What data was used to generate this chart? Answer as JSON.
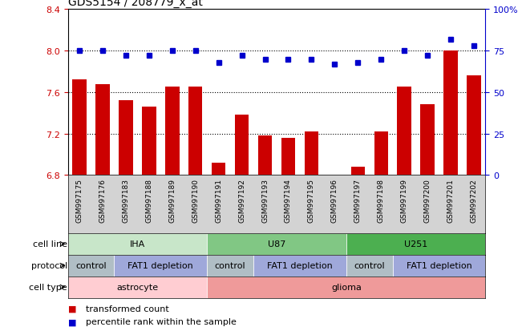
{
  "title": "GDS5154 / 208779_x_at",
  "samples": [
    "GSM997175",
    "GSM997176",
    "GSM997183",
    "GSM997188",
    "GSM997189",
    "GSM997190",
    "GSM997191",
    "GSM997192",
    "GSM997193",
    "GSM997194",
    "GSM997195",
    "GSM997196",
    "GSM997197",
    "GSM997198",
    "GSM997199",
    "GSM997200",
    "GSM997201",
    "GSM997202"
  ],
  "bar_values": [
    7.72,
    7.68,
    7.52,
    7.46,
    7.65,
    7.65,
    6.92,
    7.38,
    7.18,
    7.16,
    7.22,
    6.8,
    6.88,
    7.22,
    7.65,
    7.48,
    8.0,
    7.76
  ],
  "dot_values": [
    75,
    75,
    72,
    72,
    75,
    75,
    68,
    72,
    70,
    70,
    70,
    67,
    68,
    70,
    75,
    72,
    82,
    78
  ],
  "ylim_left": [
    6.8,
    8.4
  ],
  "ylim_right": [
    0,
    100
  ],
  "yticks_left": [
    6.8,
    7.2,
    7.6,
    8.0,
    8.4
  ],
  "yticks_right": [
    0,
    25,
    50,
    75,
    100
  ],
  "ytick_labels_right": [
    "0",
    "25",
    "50",
    "75",
    "100%"
  ],
  "grid_values": [
    8.0,
    7.6,
    7.2
  ],
  "bar_color": "#cc0000",
  "dot_color": "#0000cc",
  "bg_color": "#ffffff",
  "label_bg_color": "#d3d3d3",
  "cell_line_labels": [
    {
      "text": "IHA",
      "start": 0,
      "end": 5,
      "color": "#c8e6c9"
    },
    {
      "text": "U87",
      "start": 6,
      "end": 11,
      "color": "#81c784"
    },
    {
      "text": "U251",
      "start": 12,
      "end": 17,
      "color": "#4caf50"
    }
  ],
  "protocol_labels": [
    {
      "text": "control",
      "start": 0,
      "end": 1,
      "color": "#b0bec5"
    },
    {
      "text": "FAT1 depletion",
      "start": 2,
      "end": 5,
      "color": "#9fa8da"
    },
    {
      "text": "control",
      "start": 6,
      "end": 7,
      "color": "#b0bec5"
    },
    {
      "text": "FAT1 depletion",
      "start": 8,
      "end": 11,
      "color": "#9fa8da"
    },
    {
      "text": "control",
      "start": 12,
      "end": 13,
      "color": "#b0bec5"
    },
    {
      "text": "FAT1 depletion",
      "start": 14,
      "end": 17,
      "color": "#9fa8da"
    }
  ],
  "cell_type_labels": [
    {
      "text": "astrocyte",
      "start": 0,
      "end": 5,
      "color": "#ffcdd2"
    },
    {
      "text": "glioma",
      "start": 6,
      "end": 17,
      "color": "#ef9a9a"
    }
  ],
  "legend_items": [
    {
      "color": "#cc0000",
      "label": "transformed count"
    },
    {
      "color": "#0000cc",
      "label": "percentile rank within the sample"
    }
  ]
}
